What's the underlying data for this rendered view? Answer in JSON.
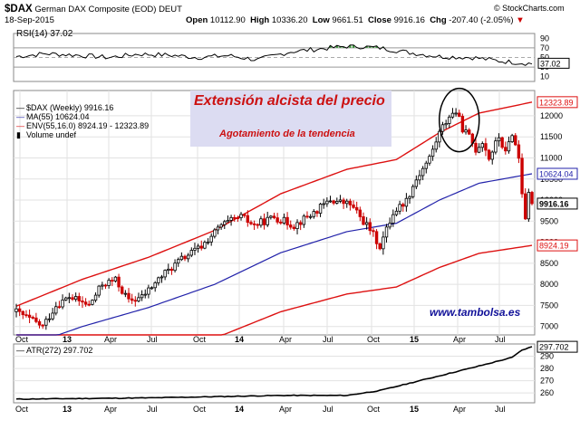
{
  "header": {
    "symbol": "$DAX",
    "name": "German DAX Composite (EOD)",
    "exchange": "DEUT",
    "date": "18-Sep-2015",
    "brand": "© StockCharts.com",
    "open_label": "Open",
    "open": "10112.90",
    "high_label": "High",
    "high": "10336.20",
    "low_label": "Low",
    "low": "9661.51",
    "close_label": "Close",
    "close": "9916.16",
    "chg_label": "Chg",
    "chg": "-207.40 (-2.05%)",
    "chg_arrow": "▼"
  },
  "annotations": {
    "title": "Extensión alcista del precio",
    "subtitle": "Agotamiento de la tendencia",
    "watermark": "www.tambolsa.es"
  },
  "colors": {
    "price_up": "#000000",
    "price_down": "#cc0000",
    "ma": "#2222aa",
    "env": "#dd1111",
    "rsi": "#000000",
    "rsi_overbought_fill": "#3a9a3a",
    "atr": "#000000",
    "label_box_bg": "#dcdcf2"
  },
  "chart_data": [
    {
      "type": "line",
      "title": "RSI(14) 37.02",
      "legend": [
        "RSI(14) 37.02"
      ],
      "right_value": "37.02",
      "yticks": [
        10,
        30,
        50,
        70,
        90
      ],
      "ylim": [
        0,
        100
      ],
      "reference_lines": [
        30,
        70
      ],
      "x": [
        "2012-10",
        "2013-01",
        "2013-04",
        "2013-07",
        "2013-10",
        "2014-01",
        "2014-04",
        "2014-07",
        "2014-10",
        "2015-01",
        "2015-02",
        "2015-03",
        "2015-04",
        "2015-05",
        "2015-06",
        "2015-07",
        "2015-08",
        "2015-09"
      ],
      "values": [
        52,
        58,
        55,
        50,
        57,
        55,
        50,
        54,
        45,
        62,
        68,
        74,
        70,
        60,
        52,
        50,
        42,
        37
      ]
    },
    {
      "type": "candlestick",
      "title": "$DAX (Weekly) 9916.16",
      "legend": [
        "$DAX (Weekly) 9916.16",
        "MA(55) 10624.04",
        "ENV(55,16.0) 8924.19 - 12323.89",
        "Volume undef"
      ],
      "xticks": [
        "Oct",
        "13",
        "Apr",
        "Jul",
        "Oct",
        "14",
        "Apr",
        "Jul",
        "Oct",
        "15",
        "Apr",
        "Jul"
      ],
      "yticks": [
        7000,
        7500,
        8000,
        8500,
        9000,
        9500,
        10000,
        10500,
        11000,
        11500,
        12000
      ],
      "ylim": [
        6800,
        12600
      ],
      "right_labels": [
        {
          "text": "12323.89",
          "value": 12323.89,
          "color": "#dd1111"
        },
        {
          "text": "10624.04",
          "value": 10624.04,
          "color": "#2222aa"
        },
        {
          "text": "9916.16",
          "value": 9916.16,
          "color": "#000000"
        },
        {
          "text": "8924.19",
          "value": 8924.19,
          "color": "#dd1111"
        }
      ],
      "price_anchors": [
        {
          "x": 0,
          "v": 7350
        },
        {
          "x": 8,
          "v": 7000
        },
        {
          "x": 12,
          "v": 7500
        },
        {
          "x": 16,
          "v": 7700
        },
        {
          "x": 22,
          "v": 7500
        },
        {
          "x": 26,
          "v": 8000
        },
        {
          "x": 30,
          "v": 8100
        },
        {
          "x": 34,
          "v": 7600
        },
        {
          "x": 38,
          "v": 7700
        },
        {
          "x": 44,
          "v": 8200
        },
        {
          "x": 50,
          "v": 8600
        },
        {
          "x": 56,
          "v": 8900
        },
        {
          "x": 62,
          "v": 9400
        },
        {
          "x": 68,
          "v": 9600
        },
        {
          "x": 72,
          "v": 9400
        },
        {
          "x": 78,
          "v": 9600
        },
        {
          "x": 84,
          "v": 9400
        },
        {
          "x": 90,
          "v": 9700
        },
        {
          "x": 95,
          "v": 10000
        },
        {
          "x": 101,
          "v": 9900
        },
        {
          "x": 107,
          "v": 9300
        },
        {
          "x": 110,
          "v": 8900
        },
        {
          "x": 114,
          "v": 9700
        },
        {
          "x": 118,
          "v": 10000
        },
        {
          "x": 121,
          "v": 10500
        },
        {
          "x": 125,
          "v": 11000
        },
        {
          "x": 128,
          "v": 11600
        },
        {
          "x": 131,
          "v": 12000
        },
        {
          "x": 133,
          "v": 12100
        },
        {
          "x": 135,
          "v": 11700
        },
        {
          "x": 137,
          "v": 11500
        },
        {
          "x": 139,
          "v": 11200
        },
        {
          "x": 141,
          "v": 11400
        },
        {
          "x": 143,
          "v": 11000
        },
        {
          "x": 146,
          "v": 11500
        },
        {
          "x": 148,
          "v": 11100
        },
        {
          "x": 150,
          "v": 11600
        },
        {
          "x": 152,
          "v": 11000
        },
        {
          "x": 153,
          "v": 10200
        },
        {
          "x": 154,
          "v": 9600
        },
        {
          "x": 155,
          "v": 10100
        },
        {
          "x": 156,
          "v": 9916
        }
      ],
      "ma_anchors": [
        {
          "x": 0,
          "v": 6450
        },
        {
          "x": 20,
          "v": 7000
        },
        {
          "x": 40,
          "v": 7450
        },
        {
          "x": 60,
          "v": 8000
        },
        {
          "x": 80,
          "v": 8750
        },
        {
          "x": 100,
          "v": 9250
        },
        {
          "x": 115,
          "v": 9450
        },
        {
          "x": 128,
          "v": 10000
        },
        {
          "x": 140,
          "v": 10400
        },
        {
          "x": 156,
          "v": 10624
        }
      ],
      "env_factor": 0.16,
      "annotation_ellipse": {
        "x": 134,
        "v": 11900
      }
    },
    {
      "type": "line",
      "title": "ATR(272) 297.702",
      "legend": [
        "ATR(272) 297.702"
      ],
      "right_value": "297.702",
      "yticks": [
        260,
        270,
        280,
        290
      ],
      "ylim": [
        252,
        300
      ],
      "xticks": [
        "Oct",
        "13",
        "Apr",
        "Jul",
        "Oct",
        "14",
        "Apr",
        "Jul",
        "Oct",
        "15",
        "Apr",
        "Jul"
      ],
      "anchors": [
        {
          "x": 0,
          "v": 255
        },
        {
          "x": 40,
          "v": 256
        },
        {
          "x": 80,
          "v": 258
        },
        {
          "x": 100,
          "v": 258
        },
        {
          "x": 110,
          "v": 262
        },
        {
          "x": 125,
          "v": 272
        },
        {
          "x": 140,
          "v": 282
        },
        {
          "x": 150,
          "v": 289
        },
        {
          "x": 153,
          "v": 295
        },
        {
          "x": 156,
          "v": 297.702
        }
      ]
    }
  ]
}
